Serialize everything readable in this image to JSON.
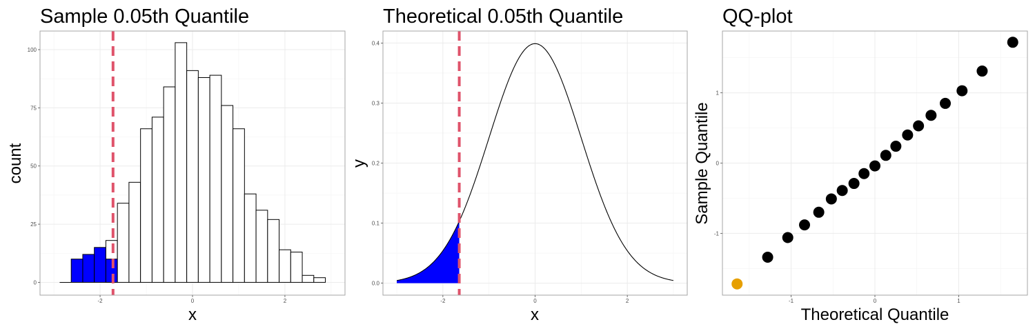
{
  "colors": {
    "highlight_fill": "#0000FF",
    "bar_fill": "#FFFFFF",
    "outline": "#000000",
    "quantile_line": "#DF536B",
    "highlight_point": "#E69F00",
    "point": "#000000"
  },
  "chart_data": [
    {
      "type": "bar",
      "title": "Sample 0.05th Quantile",
      "xlabel": "x",
      "ylabel": "count",
      "xlim": [
        -3.3,
        3.3
      ],
      "ylim": [
        -5.5,
        108
      ],
      "x_ticks": [
        -2,
        0,
        2
      ],
      "x_tick_labels": [
        "-2",
        "0",
        "2"
      ],
      "y_ticks": [
        0,
        25,
        50,
        75,
        100
      ],
      "y_tick_labels": [
        "0",
        "25",
        "50",
        "75",
        "100"
      ],
      "quantile_line_x": -1.72,
      "bin_width": 0.25,
      "bins": [
        {
          "x": -2.75,
          "count": 0,
          "highlighted": false
        },
        {
          "x": -2.5,
          "count": 10,
          "highlighted": true
        },
        {
          "x": -2.25,
          "count": 12,
          "highlighted": true
        },
        {
          "x": -2.0,
          "count": 15,
          "highlighted": true
        },
        {
          "x": -1.75,
          "count": 18,
          "highlighted": false
        },
        {
          "x": -1.75,
          "count": 10,
          "highlighted": true
        },
        {
          "x": -1.5,
          "count": 34,
          "highlighted": false
        },
        {
          "x": -1.25,
          "count": 43,
          "highlighted": false
        },
        {
          "x": -1.0,
          "count": 66,
          "highlighted": false
        },
        {
          "x": -0.75,
          "count": 71,
          "highlighted": false
        },
        {
          "x": -0.5,
          "count": 84,
          "highlighted": false
        },
        {
          "x": -0.25,
          "count": 103,
          "highlighted": false
        },
        {
          "x": 0.0,
          "count": 91,
          "highlighted": false
        },
        {
          "x": 0.25,
          "count": 88,
          "highlighted": false
        },
        {
          "x": 0.5,
          "count": 89,
          "highlighted": false
        },
        {
          "x": 0.75,
          "count": 76,
          "highlighted": false
        },
        {
          "x": 1.0,
          "count": 66,
          "highlighted": false
        },
        {
          "x": 1.25,
          "count": 38,
          "highlighted": false
        },
        {
          "x": 1.5,
          "count": 31,
          "highlighted": false
        },
        {
          "x": 1.75,
          "count": 27,
          "highlighted": false
        },
        {
          "x": 2.0,
          "count": 14,
          "highlighted": false
        },
        {
          "x": 2.25,
          "count": 13,
          "highlighted": false
        },
        {
          "x": 2.5,
          "count": 3,
          "highlighted": false
        },
        {
          "x": 2.75,
          "count": 2,
          "highlighted": false
        }
      ],
      "grid": true
    },
    {
      "type": "area",
      "title": "Theoretical 0.05th Quantile",
      "xlabel": "x",
      "ylabel": "y",
      "curve": "standard normal density",
      "x_range": [
        -3,
        3
      ],
      "xlim": [
        -3.3,
        3.3
      ],
      "ylim": [
        -0.02,
        0.42
      ],
      "x_ticks": [
        -2,
        0,
        2
      ],
      "x_tick_labels": [
        "-2",
        "0",
        "2"
      ],
      "y_ticks": [
        0,
        0.1,
        0.2,
        0.3,
        0.4
      ],
      "y_tick_labels": [
        "0.0",
        "0.1",
        "0.2",
        "0.3",
        "0.4"
      ],
      "quantile_line_x": -1.645,
      "shaded_region": [
        -3,
        -1.645
      ],
      "grid": true
    },
    {
      "type": "scatter",
      "title": "QQ-plot",
      "xlabel": "Theoretical Quantile",
      "ylabel": "Sample Quantile",
      "xlim": [
        -1.82,
        1.82
      ],
      "ylim": [
        -1.88,
        1.88
      ],
      "x_ticks": [
        -1,
        0,
        1
      ],
      "x_tick_labels": [
        "-1",
        "0",
        "1"
      ],
      "y_ticks": [
        -1,
        0,
        1
      ],
      "y_tick_labels": [
        "-1",
        "0",
        "1"
      ],
      "points": [
        {
          "x": -1.645,
          "y": -1.72,
          "highlighted": true
        },
        {
          "x": -1.28,
          "y": -1.34,
          "highlighted": false
        },
        {
          "x": -1.04,
          "y": -1.06,
          "highlighted": false
        },
        {
          "x": -0.84,
          "y": -0.88,
          "highlighted": false
        },
        {
          "x": -0.67,
          "y": -0.7,
          "highlighted": false
        },
        {
          "x": -0.52,
          "y": -0.51,
          "highlighted": false
        },
        {
          "x": -0.39,
          "y": -0.39,
          "highlighted": false
        },
        {
          "x": -0.25,
          "y": -0.29,
          "highlighted": false
        },
        {
          "x": -0.13,
          "y": -0.15,
          "highlighted": false
        },
        {
          "x": 0.0,
          "y": -0.04,
          "highlighted": false
        },
        {
          "x": 0.13,
          "y": 0.11,
          "highlighted": false
        },
        {
          "x": 0.25,
          "y": 0.24,
          "highlighted": false
        },
        {
          "x": 0.39,
          "y": 0.4,
          "highlighted": false
        },
        {
          "x": 0.52,
          "y": 0.53,
          "highlighted": false
        },
        {
          "x": 0.67,
          "y": 0.68,
          "highlighted": false
        },
        {
          "x": 0.84,
          "y": 0.85,
          "highlighted": false
        },
        {
          "x": 1.04,
          "y": 1.03,
          "highlighted": false
        },
        {
          "x": 1.28,
          "y": 1.31,
          "highlighted": false
        },
        {
          "x": 1.645,
          "y": 1.72,
          "highlighted": false
        }
      ],
      "grid": true
    }
  ]
}
